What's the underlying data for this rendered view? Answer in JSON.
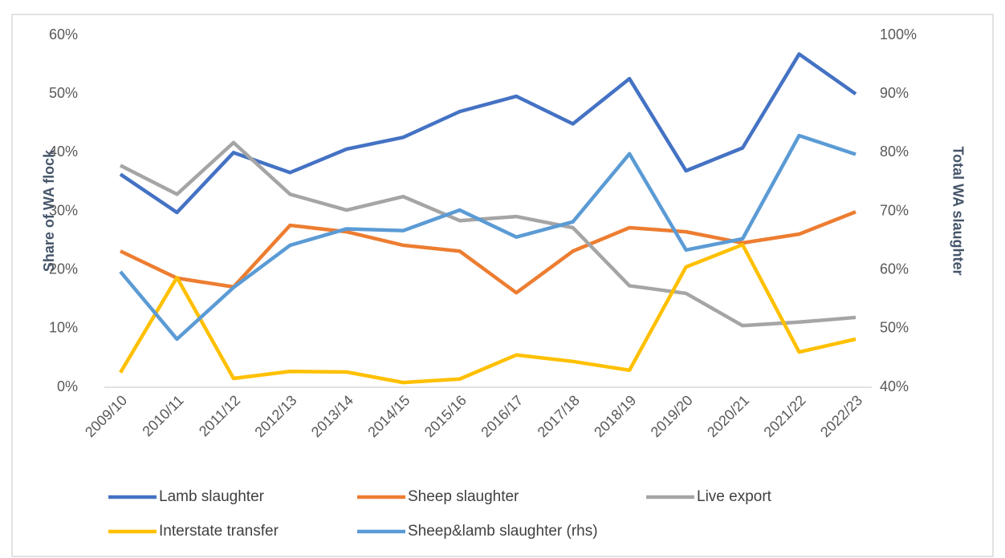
{
  "chart_data": {
    "type": "line",
    "categories": [
      "2009/10",
      "2010/11",
      "2011/12",
      "2012/13",
      "2013/14",
      "2014/15",
      "2015/16",
      "2016/17",
      "2017/18",
      "2018/19",
      "2019/20",
      "2020/21",
      "2021/22",
      "2022/23"
    ],
    "y_label": "Share of WA flock",
    "y2_label": "Total WA slaughter",
    "ylim": [
      0,
      60
    ],
    "yticks": [
      {
        "value": 0,
        "label": "0%"
      },
      {
        "value": 10,
        "label": "10%"
      },
      {
        "value": 20,
        "label": "20%"
      },
      {
        "value": 30,
        "label": "30%"
      },
      {
        "value": 40,
        "label": "40%"
      },
      {
        "value": 50,
        "label": "50%"
      },
      {
        "value": 60,
        "label": "60%"
      }
    ],
    "y2lim": [
      40,
      100
    ],
    "y2ticks": [
      {
        "value": 40,
        "label": "40%"
      },
      {
        "value": 50,
        "label": "50%"
      },
      {
        "value": 60,
        "label": "60%"
      },
      {
        "value": 70,
        "label": "70%"
      },
      {
        "value": 80,
        "label": "80%"
      },
      {
        "value": 90,
        "label": "90%"
      },
      {
        "value": 100,
        "label": "100%"
      }
    ],
    "grid": false,
    "legend": "bottom",
    "series": [
      {
        "name": "Lamb slaughter",
        "color": "#4472c4",
        "values": [
          36.3,
          29.8,
          40.0,
          36.6,
          40.6,
          42.6,
          47.0,
          49.6,
          44.9,
          52.6,
          36.9,
          40.8,
          56.8,
          50.0
        ]
      },
      {
        "name": "Sheep slaughter",
        "color": "#ed7d31",
        "values": [
          23.2,
          18.6,
          17.1,
          27.6,
          26.5,
          24.2,
          23.2,
          16.1,
          23.2,
          27.2,
          26.5,
          24.6,
          26.1,
          29.9
        ]
      },
      {
        "name": "Live export",
        "color": "#a5a5a5",
        "values": [
          37.8,
          32.9,
          41.7,
          32.9,
          30.2,
          32.5,
          28.4,
          29.1,
          27.2,
          17.3,
          16.0,
          10.5,
          11.1,
          11.9
        ]
      },
      {
        "name": "Interstate transfer",
        "color": "#ffc000",
        "values": [
          2.5,
          18.7,
          1.5,
          2.7,
          2.6,
          0.8,
          1.4,
          5.5,
          4.4,
          2.9,
          20.5,
          24.3,
          6.0,
          8.2
        ]
      },
      {
        "name": "Sheep&lamb slaughter (rhs)",
        "color": "#5b9bd5",
        "axis": "y2",
        "values": [
          59.7,
          48.2,
          57.0,
          64.2,
          67.0,
          66.7,
          70.2,
          65.6,
          68.2,
          79.8,
          63.4,
          65.3,
          82.9,
          79.7
        ]
      }
    ]
  }
}
